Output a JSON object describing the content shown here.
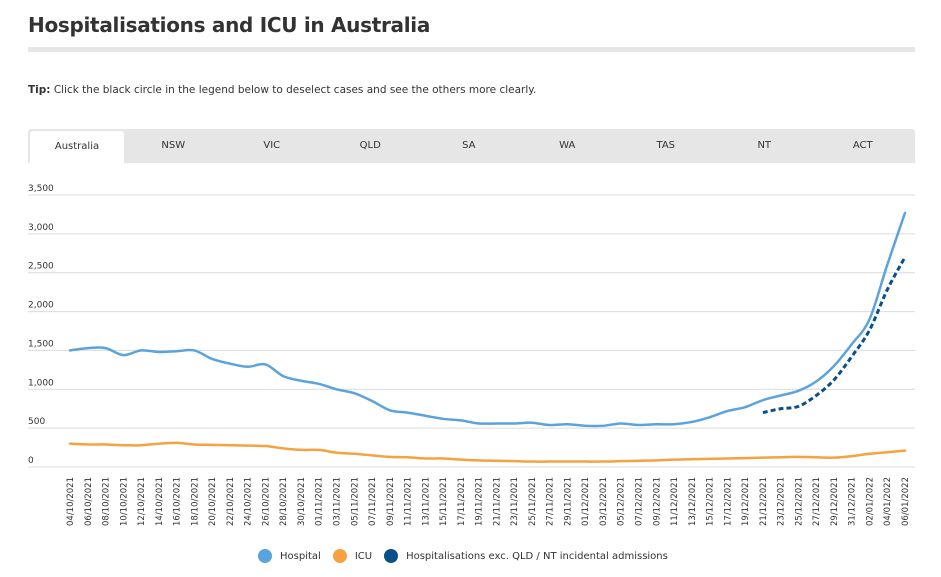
{
  "page": {
    "title": "Hospitalisations and ICU in Australia",
    "tip_label": "Tip:",
    "tip_text": " Click the black circle in the legend below to deselect cases and see the others more clearly."
  },
  "tabs": [
    {
      "label": "Australia",
      "active": true
    },
    {
      "label": "NSW",
      "active": false
    },
    {
      "label": "VIC",
      "active": false
    },
    {
      "label": "QLD",
      "active": false
    },
    {
      "label": "SA",
      "active": false
    },
    {
      "label": "WA",
      "active": false
    },
    {
      "label": "TAS",
      "active": false
    },
    {
      "label": "NT",
      "active": false
    },
    {
      "label": "ACT",
      "active": false
    }
  ],
  "legend": [
    {
      "label": "Hospital",
      "color": "#5ba3dc",
      "icon": "circle"
    },
    {
      "label": "ICU",
      "color": "#f7a23f",
      "icon": "circle"
    },
    {
      "label": "Hospitalisations exc. QLD / NT incidental admissions",
      "color": "#0b4f8a",
      "icon": "circle"
    }
  ],
  "chart_data": {
    "type": "line",
    "title": "Hospitalisations and ICU in Australia",
    "xlabel": "",
    "ylabel": "",
    "ylim": [
      0,
      3500
    ],
    "yticks": [
      0,
      500,
      1000,
      1500,
      2000,
      2500,
      3000,
      3500
    ],
    "ytick_labels": [
      "0",
      "500",
      "1,000",
      "1,500",
      "2,000",
      "2,500",
      "3,000",
      "3,500"
    ],
    "grid": true,
    "legend_position": "bottom",
    "x": [
      "04/10/2021",
      "06/10/2021",
      "08/10/2021",
      "10/10/2021",
      "12/10/2021",
      "14/10/2021",
      "16/10/2021",
      "18/10/2021",
      "20/10/2021",
      "22/10/2021",
      "24/10/2021",
      "26/10/2021",
      "28/10/2021",
      "30/10/2021",
      "01/11/2021",
      "03/11/2021",
      "05/11/2021",
      "07/11/2021",
      "09/11/2021",
      "11/11/2021",
      "13/11/2021",
      "15/11/2021",
      "17/11/2021",
      "19/11/2021",
      "21/11/2021",
      "23/11/2021",
      "25/11/2021",
      "27/11/2021",
      "29/11/2021",
      "01/12/2021",
      "03/12/2021",
      "05/12/2021",
      "07/12/2021",
      "09/12/2021",
      "11/12/2021",
      "13/12/2021",
      "15/12/2021",
      "17/12/2021",
      "19/12/2021",
      "21/12/2021",
      "23/12/2021",
      "25/12/2021",
      "27/12/2021",
      "29/12/2021",
      "31/12/2021",
      "02/01/2022",
      "04/01/2022",
      "06/01/2022"
    ],
    "series": [
      {
        "name": "Hospital",
        "color": "#5ba3dc",
        "style": "solid",
        "values": [
          1500,
          1530,
          1530,
          1440,
          1500,
          1480,
          1490,
          1500,
          1390,
          1330,
          1290,
          1320,
          1170,
          1110,
          1070,
          1000,
          950,
          850,
          730,
          700,
          660,
          620,
          600,
          560,
          560,
          560,
          570,
          540,
          550,
          530,
          530,
          560,
          540,
          550,
          550,
          580,
          640,
          720,
          770,
          860,
          920,
          980,
          1100,
          1300,
          1580,
          1900,
          2600,
          3270
        ]
      },
      {
        "name": "ICU",
        "color": "#f7a23f",
        "style": "solid",
        "values": [
          300,
          290,
          290,
          280,
          280,
          300,
          310,
          290,
          285,
          280,
          275,
          270,
          240,
          220,
          220,
          185,
          170,
          150,
          130,
          125,
          110,
          110,
          95,
          85,
          80,
          75,
          70,
          70,
          70,
          70,
          70,
          75,
          80,
          85,
          95,
          100,
          105,
          110,
          115,
          120,
          125,
          130,
          125,
          120,
          140,
          170,
          190,
          210
        ]
      },
      {
        "name": "Hospitalisations exc. QLD / NT incidental admissions",
        "color": "#0b4f8a",
        "style": "dashed",
        "values": [
          null,
          null,
          null,
          null,
          null,
          null,
          null,
          null,
          null,
          null,
          null,
          null,
          null,
          null,
          null,
          null,
          null,
          null,
          null,
          null,
          null,
          null,
          null,
          null,
          null,
          null,
          null,
          null,
          null,
          null,
          null,
          null,
          null,
          null,
          null,
          null,
          null,
          null,
          null,
          700,
          750,
          780,
          920,
          1120,
          1420,
          1760,
          2280,
          2700
        ]
      }
    ]
  }
}
